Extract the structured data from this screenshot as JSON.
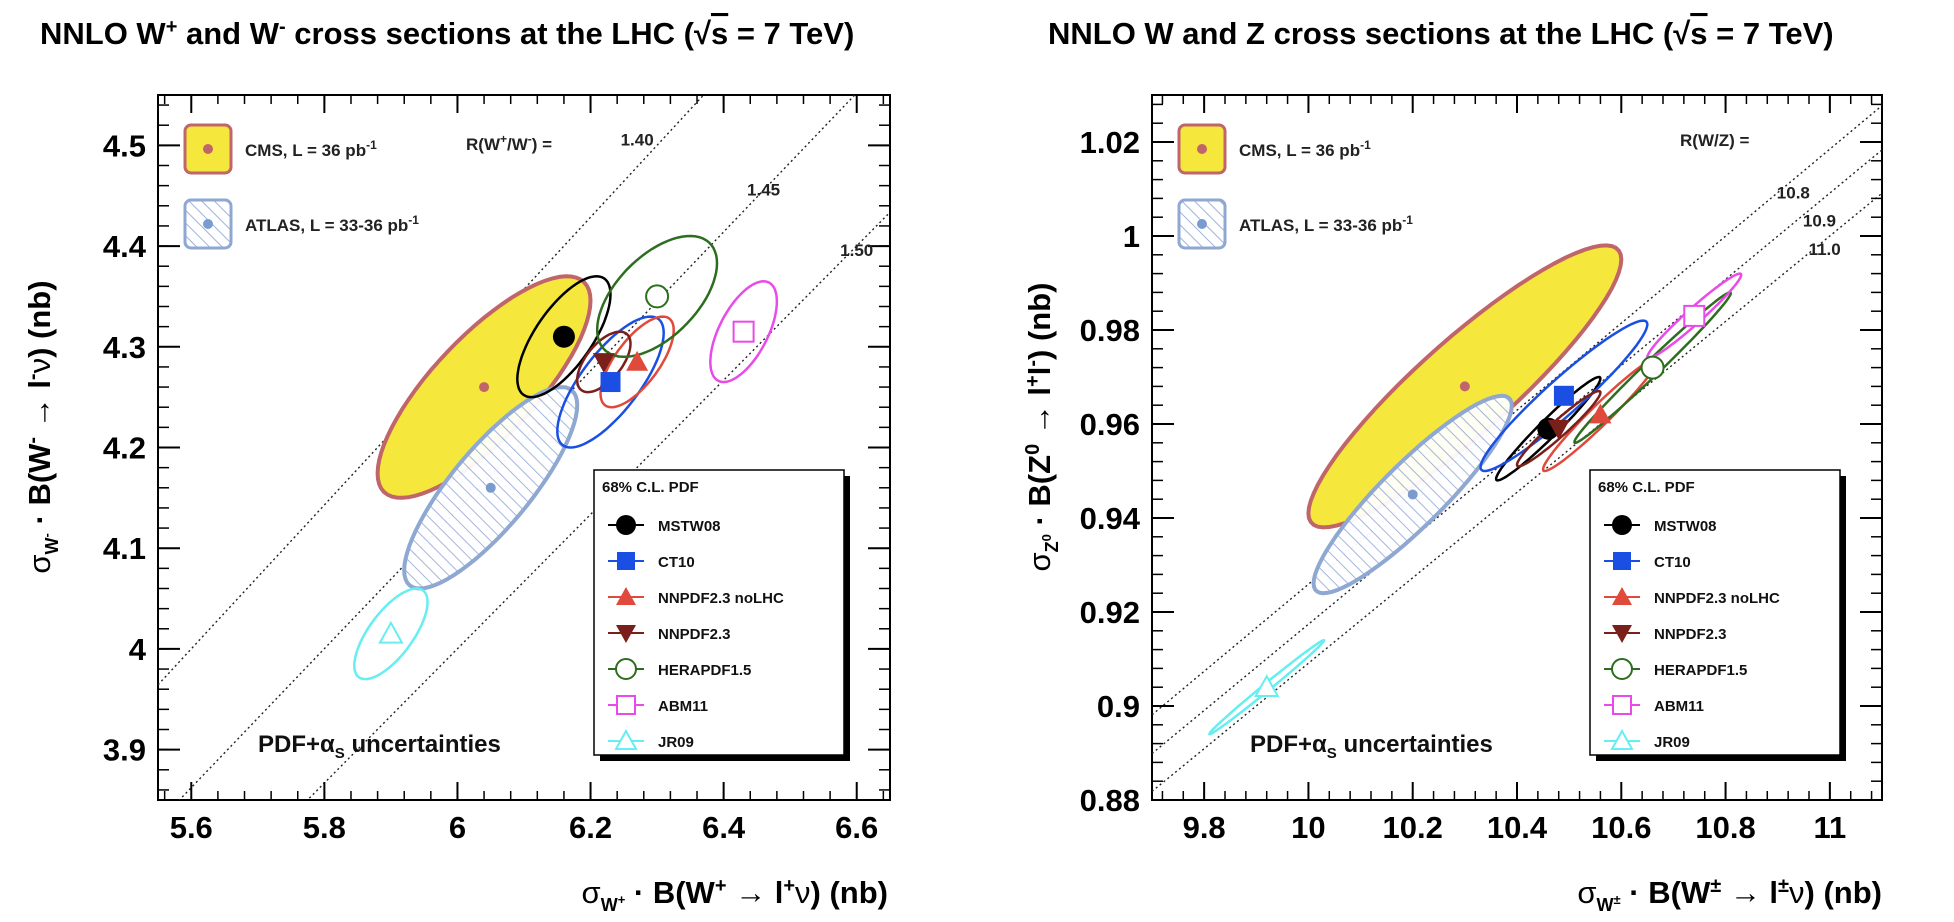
{
  "chart_data": [
    {
      "type": "scatter",
      "title": "NNLO W⁺ and W⁻ cross sections at the LHC (√s = 7 TeV)",
      "xlabel": "σW⁺ · B(W⁺ → l⁺ν)  (nb)",
      "ylabel": "σW⁻ · B(W⁻ → l⁻ν)  (nb)",
      "xlim": [
        5.55,
        6.65
      ],
      "ylim": [
        3.85,
        4.55
      ],
      "xticks": [
        "5.6",
        "5.8",
        "6",
        "6.2",
        "6.4",
        "6.6"
      ],
      "yticks": [
        "3.9",
        "4",
        "4.1",
        "4.2",
        "4.3",
        "4.4",
        "4.5"
      ],
      "ratio_label": "R(W⁺/W⁻) =",
      "ratio_lines": [
        {
          "value": "1.40",
          "slope": 0.7143,
          "label_x": 6.27,
          "label_y": 4.5
        },
        {
          "value": "1.45",
          "slope": 0.6897,
          "label_x": 6.46,
          "label_y": 4.45
        },
        {
          "value": "1.50",
          "slope": 0.6667,
          "label_x": 6.6,
          "label_y": 4.39
        }
      ],
      "experiments": [
        {
          "name": "CMS, L = 36 pb⁻¹",
          "x": 6.04,
          "y": 4.26,
          "sx": 0.16,
          "sy": 0.11,
          "rho": 0.78,
          "fill": "#f6e73c",
          "stroke": "#c0666a"
        },
        {
          "name": "ATLAS, L = 33-36 pb⁻¹",
          "x": 6.05,
          "y": 4.16,
          "sx": 0.13,
          "sy": 0.1,
          "rho": 0.82,
          "fill": "hatch",
          "stroke": "#8fa8d2"
        }
      ],
      "series": [
        {
          "name": "MSTW08",
          "marker": "circle-filled",
          "color": "#000000",
          "x": 6.16,
          "y": 4.31,
          "sx": 0.07,
          "sy": 0.06,
          "rho": 0.7
        },
        {
          "name": "CT10",
          "marker": "square-filled",
          "color": "#1b4fe3",
          "x": 6.23,
          "y": 4.265,
          "sx": 0.08,
          "sy": 0.065,
          "rho": 0.75
        },
        {
          "name": "NNPDF2.3 noLHC",
          "marker": "triangle-up-filled",
          "color": "#e04a3c",
          "x": 6.27,
          "y": 4.285,
          "sx": 0.055,
          "sy": 0.045,
          "rho": 0.7
        },
        {
          "name": "NNPDF2.3",
          "marker": "triangle-down-filled",
          "color": "#7a1f1a",
          "x": 6.22,
          "y": 4.285,
          "sx": 0.04,
          "sy": 0.03,
          "rho": 0.6
        },
        {
          "name": "HERAPDF1.5",
          "marker": "circle-open",
          "color": "#2c6e1e",
          "x": 6.3,
          "y": 4.35,
          "sx": 0.09,
          "sy": 0.06,
          "rho": 0.55
        },
        {
          "name": "ABM11",
          "marker": "square-open",
          "color": "#e84be8",
          "x": 6.43,
          "y": 4.315,
          "sx": 0.05,
          "sy": 0.05,
          "rho": 0.6
        },
        {
          "name": "JR09",
          "marker": "triangle-up-open",
          "color": "#66eef0",
          "x": 5.9,
          "y": 4.015,
          "sx": 0.055,
          "sy": 0.045,
          "rho": 0.7
        }
      ],
      "legend_title": "68% C.L. PDF",
      "annotation": "PDF+αS uncertainties"
    },
    {
      "type": "scatter",
      "title": "NNLO W and Z cross sections at the LHC (√s = 7 TeV)",
      "xlabel": "σW± · B(W± → l±ν)  (nb)",
      "ylabel": "σZ⁰ · B(Z⁰ → l⁺l⁻)  (nb)",
      "xlim": [
        9.7,
        11.1
      ],
      "ylim": [
        0.88,
        1.03
      ],
      "xticks": [
        "9.8",
        "10",
        "10.2",
        "10.4",
        "10.6",
        "10.8",
        "11"
      ],
      "yticks": [
        "0.88",
        "0.9",
        "0.92",
        "0.94",
        "0.96",
        "0.98",
        "1",
        "1.02"
      ],
      "ratio_label": "R(W/Z) =",
      "ratio_lines": [
        {
          "value": "10.8",
          "slope": 0.09259,
          "label_x": 10.93,
          "label_y": 1.008
        },
        {
          "value": "10.9",
          "slope": 0.09174,
          "label_x": 10.98,
          "label_y": 1.002
        },
        {
          "value": "11.0",
          "slope": 0.09091,
          "label_x": 10.99,
          "label_y": 0.996
        }
      ],
      "experiments": [
        {
          "name": "CMS, L = 36 pb⁻¹",
          "x": 10.3,
          "y": 0.968,
          "sx": 0.3,
          "sy": 0.03,
          "rho": 0.9,
          "fill": "#f6e73c",
          "stroke": "#c0666a"
        },
        {
          "name": "ATLAS, L = 33-36 pb⁻¹",
          "x": 10.2,
          "y": 0.945,
          "sx": 0.19,
          "sy": 0.021,
          "rho": 0.9,
          "fill": "hatch",
          "stroke": "#8fa8d2"
        }
      ],
      "series": [
        {
          "name": "MSTW08",
          "marker": "circle-filled",
          "color": "#000000",
          "x": 10.46,
          "y": 0.959,
          "sx": 0.1,
          "sy": 0.011,
          "rho": 0.97
        },
        {
          "name": "CT10",
          "marker": "square-filled",
          "color": "#1b4fe3",
          "x": 10.49,
          "y": 0.966,
          "sx": 0.16,
          "sy": 0.016,
          "rho": 0.95
        },
        {
          "name": "NNPDF2.3 noLHC",
          "marker": "triangle-up-filled",
          "color": "#e04a3c",
          "x": 10.56,
          "y": 0.962,
          "sx": 0.11,
          "sy": 0.012,
          "rho": 0.97
        },
        {
          "name": "NNPDF2.3",
          "marker": "triangle-down-filled",
          "color": "#7a1f1a",
          "x": 10.48,
          "y": 0.959,
          "sx": 0.08,
          "sy": 0.008,
          "rho": 0.96
        },
        {
          "name": "HERAPDF1.5",
          "marker": "circle-open",
          "color": "#2c6e1e",
          "x": 10.66,
          "y": 0.972,
          "sx": 0.15,
          "sy": 0.016,
          "rho": 0.99
        },
        {
          "name": "ABM11",
          "marker": "square-open",
          "color": "#e84be8",
          "x": 10.74,
          "y": 0.983,
          "sx": 0.09,
          "sy": 0.009,
          "rho": 0.97
        },
        {
          "name": "JR09",
          "marker": "triangle-up-open",
          "color": "#66eef0",
          "x": 9.92,
          "y": 0.904,
          "sx": 0.11,
          "sy": 0.01,
          "rho": 0.995
        }
      ],
      "legend_title": "68% C.L. PDF",
      "annotation": "PDF+αS uncertainties"
    }
  ]
}
